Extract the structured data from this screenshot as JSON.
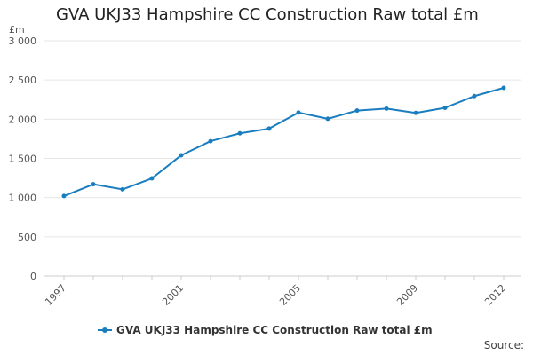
{
  "chart_data": {
    "type": "line",
    "title": "GVA UKJ33 Hampshire CC Construction Raw total £m",
    "unit": "£m",
    "x": [
      1997,
      1998,
      1999,
      2000,
      2001,
      2002,
      2003,
      2004,
      2005,
      2006,
      2007,
      2008,
      2009,
      2010,
      2011,
      2012
    ],
    "x_tick_labels": [
      "1997",
      "2001",
      "2005",
      "2009",
      "2012"
    ],
    "y_ticks": [
      0,
      500,
      1000,
      1500,
      2000,
      2500,
      3000
    ],
    "y_tick_labels": [
      "0",
      "500",
      "1 000",
      "1 500",
      "2 000",
      "2 500",
      "3 000"
    ],
    "ylim": [
      0,
      3000
    ],
    "grid": true,
    "legend_position": "bottom",
    "series": [
      {
        "name": "GVA UKJ33 Hampshire CC Construction Raw total £m",
        "color": "#1a7dbf",
        "values": [
          1020,
          1170,
          1105,
          1245,
          1540,
          1720,
          1820,
          1880,
          2085,
          2005,
          2110,
          2135,
          2080,
          2145,
          2295,
          2400
        ]
      }
    ]
  },
  "source_label": "Source:"
}
